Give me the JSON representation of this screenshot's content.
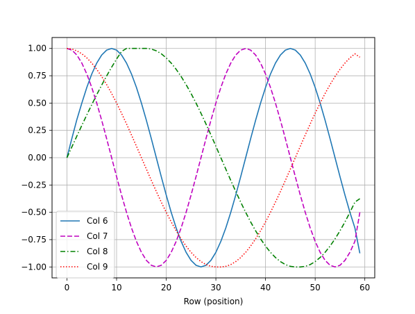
{
  "chart_data": {
    "type": "line",
    "xlabel": "Row (position)",
    "ylabel": "",
    "title": "",
    "xlim": [
      -3,
      62
    ],
    "ylim": [
      -1.1,
      1.1
    ],
    "xticks": [
      0,
      10,
      20,
      30,
      40,
      50,
      60
    ],
    "yticks": [
      -1.0,
      -0.75,
      -0.5,
      -0.25,
      0.0,
      0.25,
      0.5,
      0.75,
      1.0
    ],
    "xtick_labels": [
      "0",
      "10",
      "20",
      "30",
      "40",
      "50",
      "60"
    ],
    "ytick_labels": [
      "−1.00",
      "−0.75",
      "−0.50",
      "−0.25",
      "0.00",
      "0.25",
      "0.50",
      "0.75",
      "1.00"
    ],
    "grid": true,
    "legend_placement": "lower-left",
    "x": [
      0,
      1,
      2,
      3,
      4,
      5,
      6,
      7,
      8,
      9,
      10,
      11,
      12,
      13,
      14,
      15,
      16,
      17,
      18,
      19,
      20,
      21,
      22,
      23,
      24,
      25,
      26,
      27,
      28,
      29,
      30,
      31,
      32,
      33,
      34,
      35,
      36,
      37,
      38,
      39,
      40,
      41,
      42,
      43,
      44,
      45,
      46,
      47,
      48,
      49,
      50,
      51,
      52,
      53,
      54,
      55,
      56,
      57,
      58,
      59
    ],
    "series": [
      {
        "name": "Col 6",
        "color": "#1f77b4",
        "style": "solid",
        "values": [
          0.0,
          0.1774,
          0.3491,
          0.5,
          0.6428,
          0.766,
          0.866,
          0.9397,
          0.9848,
          1.0,
          0.9848,
          0.9397,
          0.866,
          0.766,
          0.6428,
          0.5,
          0.342,
          0.1736,
          0.0,
          -0.1736,
          -0.342,
          -0.5,
          -0.6428,
          -0.766,
          -0.866,
          -0.9397,
          -0.9848,
          -1.0,
          -0.9848,
          -0.9397,
          -0.866,
          -0.766,
          -0.6428,
          -0.5,
          -0.342,
          -0.1736,
          0.0,
          0.1736,
          0.342,
          0.5,
          0.6428,
          0.766,
          0.866,
          0.9397,
          0.9848,
          1.0,
          0.9848,
          0.9397,
          0.866,
          0.766,
          0.6428,
          0.5,
          0.342,
          0.1736,
          0.0,
          -0.1736,
          -0.342,
          -0.5,
          -0.6428,
          -0.875
        ]
      },
      {
        "name": "Col 7",
        "color": "#bf00bf",
        "style": "dashed",
        "values": [
          1.0,
          0.9848,
          0.9397,
          0.866,
          0.766,
          0.6428,
          0.5,
          0.342,
          0.1736,
          0.0,
          -0.1736,
          -0.342,
          -0.5,
          -0.6428,
          -0.766,
          -0.866,
          -0.9397,
          -0.9848,
          -1.0,
          -0.9848,
          -0.9397,
          -0.866,
          -0.766,
          -0.6428,
          -0.5,
          -0.342,
          -0.1736,
          0.0,
          0.1736,
          0.342,
          0.5,
          0.6428,
          0.766,
          0.866,
          0.9397,
          0.9848,
          1.0,
          0.9848,
          0.9397,
          0.866,
          0.766,
          0.6428,
          0.5,
          0.342,
          0.1736,
          0.0,
          -0.1736,
          -0.342,
          -0.5,
          -0.6428,
          -0.766,
          -0.866,
          -0.9397,
          -0.9848,
          -1.0,
          -0.9848,
          -0.9397,
          -0.866,
          -0.766,
          -0.5
        ]
      },
      {
        "name": "Col 8",
        "color": "#008000",
        "style": "dashdot",
        "values": [
          0.0,
          0.0993,
          0.1981,
          0.2958,
          0.3919,
          0.4858,
          0.5768,
          0.6645,
          0.7485,
          0.8281,
          0.9029,
          0.9724,
          1.0,
          1.0,
          1.0,
          1.0,
          1.0,
          0.9945,
          0.9781,
          0.9511,
          0.9135,
          0.866,
          0.809,
          0.7431,
          0.6691,
          0.5878,
          0.5,
          0.4067,
          0.309,
          0.2079,
          0.1045,
          0.0,
          -0.1045,
          -0.2079,
          -0.309,
          -0.4067,
          -0.5,
          -0.5878,
          -0.6691,
          -0.7431,
          -0.809,
          -0.866,
          -0.9135,
          -0.9511,
          -0.9781,
          -0.9945,
          -1.0,
          -1.0,
          -0.9945,
          -0.9781,
          -0.9511,
          -0.9135,
          -0.866,
          -0.809,
          -0.7431,
          -0.6691,
          -0.5878,
          -0.5,
          -0.4067,
          -0.375
        ]
      },
      {
        "name": "Col 9",
        "color": "#ff0000",
        "style": "dotted",
        "values": [
          1.0,
          0.9945,
          0.9781,
          0.9511,
          0.9135,
          0.866,
          0.809,
          0.7431,
          0.6691,
          0.5878,
          0.5,
          0.4067,
          0.309,
          0.2079,
          0.1045,
          0.0,
          -0.1045,
          -0.2079,
          -0.309,
          -0.4067,
          -0.5,
          -0.5878,
          -0.6691,
          -0.7431,
          -0.809,
          -0.866,
          -0.9135,
          -0.9511,
          -0.9781,
          -0.9945,
          -1.0,
          -1.0,
          -0.9945,
          -0.9781,
          -0.9511,
          -0.9135,
          -0.866,
          -0.809,
          -0.7431,
          -0.6691,
          -0.5878,
          -0.5,
          -0.4067,
          -0.309,
          -0.2079,
          -0.1045,
          0.0,
          0.1045,
          0.2079,
          0.309,
          0.4067,
          0.5,
          0.5878,
          0.6691,
          0.7431,
          0.809,
          0.866,
          0.9135,
          0.9511,
          0.92
        ]
      }
    ]
  }
}
